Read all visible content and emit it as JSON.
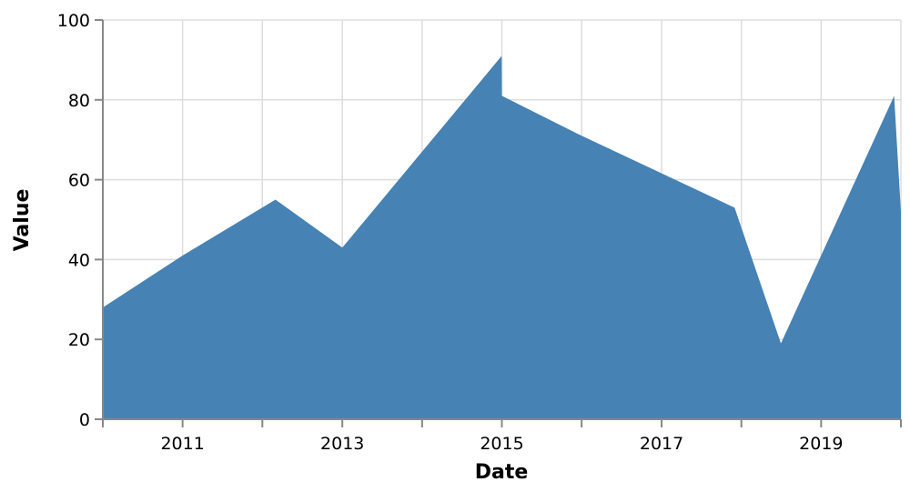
{
  "chart_data": {
    "type": "area",
    "xlabel": "Date",
    "ylabel": "Value",
    "x": [
      "2010-01-01",
      "2011-01-01",
      "2012-03-01",
      "2013-01-01",
      "2014-12-31",
      "2015-01-01",
      "2016-01-01",
      "2017-12-01",
      "2018-07-01",
      "2019-12-01",
      "2020-01-01"
    ],
    "y": [
      28,
      41,
      55,
      43,
      91,
      81,
      71,
      53,
      19,
      81,
      52
    ],
    "xlim": [
      "2010-01-01",
      "2020-01-01"
    ],
    "ylim": [
      0,
      100
    ],
    "x_ticks": [
      "2011",
      "2013",
      "2015",
      "2017",
      "2019"
    ],
    "y_ticks": [
      0,
      20,
      40,
      60,
      80,
      100
    ],
    "grid": true,
    "color": "#4682b4"
  }
}
